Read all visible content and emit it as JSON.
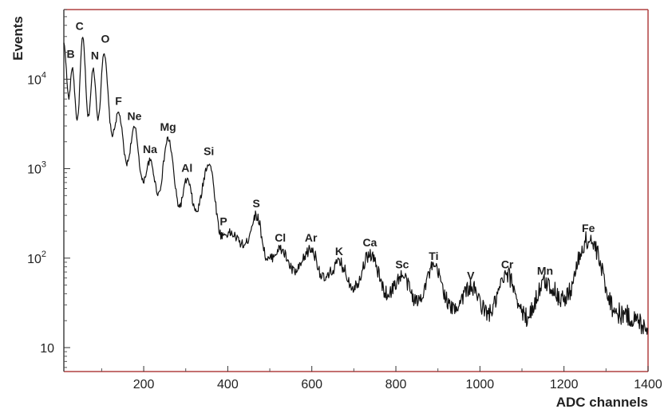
{
  "chart_data": {
    "type": "line",
    "xlabel": "ADC channels",
    "ylabel": "Events",
    "xlim": [
      10,
      1400
    ],
    "ylim": [
      5.4,
      60000
    ],
    "y_scale": "log",
    "grid": false,
    "x_ticks": [
      200,
      400,
      600,
      800,
      1000,
      1200,
      1400
    ],
    "x_tick_labels": [
      "200",
      "400",
      "600",
      "800",
      "1000",
      "1200",
      "1400"
    ],
    "y_ticks": [
      10,
      100,
      1000,
      10000
    ],
    "y_tick_labels": [
      {
        "base": "10",
        "exp": ""
      },
      {
        "base": "10",
        "exp": "2"
      },
      {
        "base": "10",
        "exp": "3"
      },
      {
        "base": "10",
        "exp": "4"
      }
    ],
    "colors": {
      "line": "#111111",
      "axis_left": "#444444",
      "frame": "#b04040"
    },
    "peaks": [
      {
        "label": "B",
        "x": 30,
        "y": 13500
      },
      {
        "label": "C",
        "x": 55,
        "y": 29000
      },
      {
        "label": "N",
        "x": 80,
        "y": 13000
      },
      {
        "label": "O",
        "x": 105,
        "y": 20000
      },
      {
        "label": "F",
        "x": 140,
        "y": 4200
      },
      {
        "label": "Ne",
        "x": 178,
        "y": 2850
      },
      {
        "label": "Na",
        "x": 215,
        "y": 1220
      },
      {
        "label": "Mg",
        "x": 258,
        "y": 2150
      },
      {
        "label": "Al",
        "x": 303,
        "y": 750
      },
      {
        "label": "Si",
        "x": 355,
        "y": 1160
      },
      {
        "label": "P",
        "x": 405,
        "y": 190
      },
      {
        "label": "S",
        "x": 468,
        "y": 300
      },
      {
        "label": "Cl",
        "x": 525,
        "y": 125
      },
      {
        "label": "Ar",
        "x": 598,
        "y": 125
      },
      {
        "label": "K",
        "x": 665,
        "y": 88
      },
      {
        "label": "Ca",
        "x": 738,
        "y": 110
      },
      {
        "label": "Sc",
        "x": 815,
        "y": 63
      },
      {
        "label": "Ti",
        "x": 890,
        "y": 78
      },
      {
        "label": "V",
        "x": 978,
        "y": 47
      },
      {
        "label": "Cr",
        "x": 1065,
        "y": 63
      },
      {
        "label": "Mn",
        "x": 1155,
        "y": 53
      },
      {
        "label": "Fe",
        "x": 1258,
        "y": 160
      }
    ],
    "valleys": [
      {
        "x": 10,
        "y": 25000
      },
      {
        "x": 22,
        "y": 6200
      },
      {
        "x": 42,
        "y": 3500
      },
      {
        "x": 68,
        "y": 3800
      },
      {
        "x": 92,
        "y": 3600
      },
      {
        "x": 125,
        "y": 2400
      },
      {
        "x": 160,
        "y": 1150
      },
      {
        "x": 198,
        "y": 720
      },
      {
        "x": 235,
        "y": 530
      },
      {
        "x": 285,
        "y": 380
      },
      {
        "x": 325,
        "y": 330
      },
      {
        "x": 385,
        "y": 180
      },
      {
        "x": 440,
        "y": 140
      },
      {
        "x": 495,
        "y": 95
      },
      {
        "x": 560,
        "y": 70
      },
      {
        "x": 630,
        "y": 58
      },
      {
        "x": 700,
        "y": 48
      },
      {
        "x": 780,
        "y": 40
      },
      {
        "x": 850,
        "y": 33
      },
      {
        "x": 935,
        "y": 27
      },
      {
        "x": 1020,
        "y": 24
      },
      {
        "x": 1110,
        "y": 22
      },
      {
        "x": 1200,
        "y": 35
      },
      {
        "x": 1330,
        "y": 24
      },
      {
        "x": 1400,
        "y": 18
      }
    ]
  }
}
